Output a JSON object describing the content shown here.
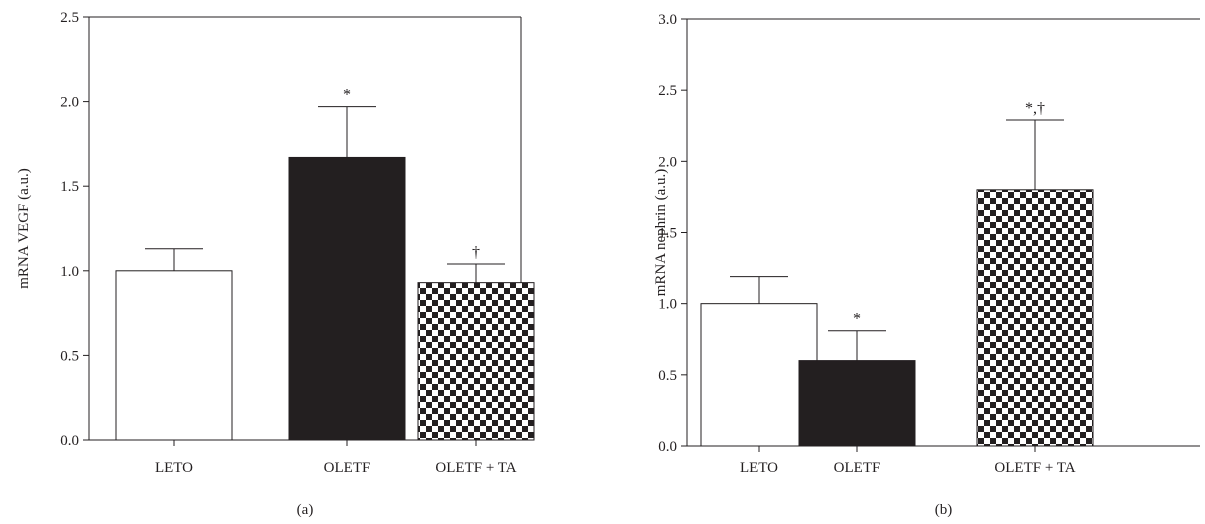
{
  "chart_data": [
    {
      "type": "bar",
      "panel_label": "(a)",
      "categories": [
        "LETO",
        "OLETF",
        "OLETF + TA"
      ],
      "values": [
        1.0,
        1.67,
        0.93
      ],
      "errors": [
        0.13,
        0.3,
        0.11
      ],
      "significance": [
        "",
        "*",
        "†"
      ],
      "fills": [
        "white",
        "black",
        "checker"
      ],
      "ylabel": "mRNA VEGF (a.u.)",
      "ylim": [
        0,
        2.5
      ],
      "yticks": [
        "0.0",
        "0.5",
        "1.0",
        "1.5",
        "2.0",
        "2.5"
      ],
      "grid": false,
      "colors": {
        "ink": "#231f20",
        "open_bar": "#ffffff",
        "solid_bar": "#231f20"
      }
    },
    {
      "type": "bar",
      "panel_label": "(b)",
      "categories": [
        "LETO",
        "OLETF",
        "OLETF + TA"
      ],
      "values": [
        1.0,
        0.6,
        1.8
      ],
      "errors": [
        0.19,
        0.21,
        0.49
      ],
      "significance": [
        "",
        "*",
        "*,†"
      ],
      "fills": [
        "white",
        "black",
        "checker"
      ],
      "ylabel": "mRNA nephrin (a.u.)",
      "ylim": [
        0,
        3.0
      ],
      "yticks": [
        "0.0",
        "0.5",
        "1.0",
        "1.5",
        "2.0",
        "2.5",
        "3.0"
      ],
      "grid": false,
      "colors": {
        "ink": "#231f20",
        "open_bar": "#ffffff",
        "solid_bar": "#231f20"
      }
    }
  ]
}
